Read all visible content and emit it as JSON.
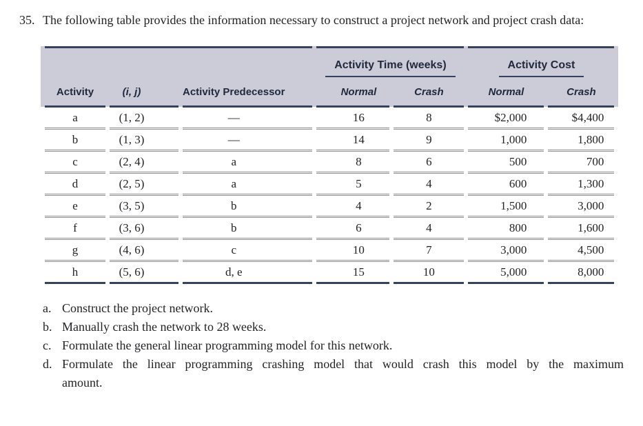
{
  "problem": {
    "number": "35.",
    "statement": "The following table provides the information necessary to construct a project network and project crash data:"
  },
  "table": {
    "group_headers": [
      {
        "label": "Activity Time (weeks)"
      },
      {
        "label": "Activity Cost"
      }
    ],
    "columns": {
      "activity": "Activity",
      "ij": "(i, j)",
      "predecessor": "Activity Predecessor",
      "time_normal": "Normal",
      "time_crash": "Crash",
      "cost_normal": "Normal",
      "cost_crash": "Crash"
    },
    "rows": [
      {
        "activity": "a",
        "ij": "(1, 2)",
        "predecessor": "—",
        "time_normal": "16",
        "time_crash": "8",
        "cost_normal": "$2,000",
        "cost_crash": "$4,400"
      },
      {
        "activity": "b",
        "ij": "(1, 3)",
        "predecessor": "—",
        "time_normal": "14",
        "time_crash": "9",
        "cost_normal": "1,000",
        "cost_crash": "1,800"
      },
      {
        "activity": "c",
        "ij": "(2, 4)",
        "predecessor": "a",
        "time_normal": "8",
        "time_crash": "6",
        "cost_normal": "500",
        "cost_crash": "700"
      },
      {
        "activity": "d",
        "ij": "(2, 5)",
        "predecessor": "a",
        "time_normal": "5",
        "time_crash": "4",
        "cost_normal": "600",
        "cost_crash": "1,300"
      },
      {
        "activity": "e",
        "ij": "(3, 5)",
        "predecessor": "b",
        "time_normal": "4",
        "time_crash": "2",
        "cost_normal": "1,500",
        "cost_crash": "3,000"
      },
      {
        "activity": "f",
        "ij": "(3, 6)",
        "predecessor": "b",
        "time_normal": "6",
        "time_crash": "4",
        "cost_normal": "800",
        "cost_crash": "1,600"
      },
      {
        "activity": "g",
        "ij": "(4, 6)",
        "predecessor": "c",
        "time_normal": "10",
        "time_crash": "7",
        "cost_normal": "3,000",
        "cost_crash": "4,500"
      },
      {
        "activity": "h",
        "ij": "(5, 6)",
        "predecessor": "d, e",
        "time_normal": "15",
        "time_crash": "10",
        "cost_normal": "5,000",
        "cost_crash": "8,000"
      }
    ]
  },
  "questions": [
    {
      "letter": "a.",
      "text": "Construct the project network."
    },
    {
      "letter": "b.",
      "text": "Manually crash the network to 28 weeks."
    },
    {
      "letter": "c.",
      "text": "Formulate the general linear programming model for this network."
    },
    {
      "letter": "d.",
      "text": "Formulate the linear programming crashing model that would crash this model by the maximum amount."
    }
  ],
  "colors": {
    "header_band": "#cbccd8",
    "navy_rule": "#36415f",
    "row_rule": "#8d8e96",
    "text": "#232327"
  }
}
